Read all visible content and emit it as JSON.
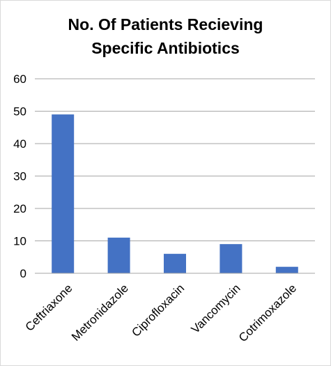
{
  "chart_data": {
    "type": "bar",
    "title_line1": "No. Of Patients Recieving",
    "title_line2": "Specific Antibiotics",
    "categories": [
      "Ceftriaxone",
      "Metronidazole",
      "Ciprofloxacin",
      "Vancomycin",
      "Cotrimoxazole"
    ],
    "values": [
      49,
      11,
      6,
      9,
      2
    ],
    "xlabel": "",
    "ylabel": "",
    "ylim": [
      0,
      60
    ],
    "yticks": [
      0,
      10,
      20,
      30,
      40,
      50,
      60
    ],
    "grid": true,
    "legend": "none",
    "bar_color": "#4472c4",
    "grid_color": "#a6a6a6"
  }
}
